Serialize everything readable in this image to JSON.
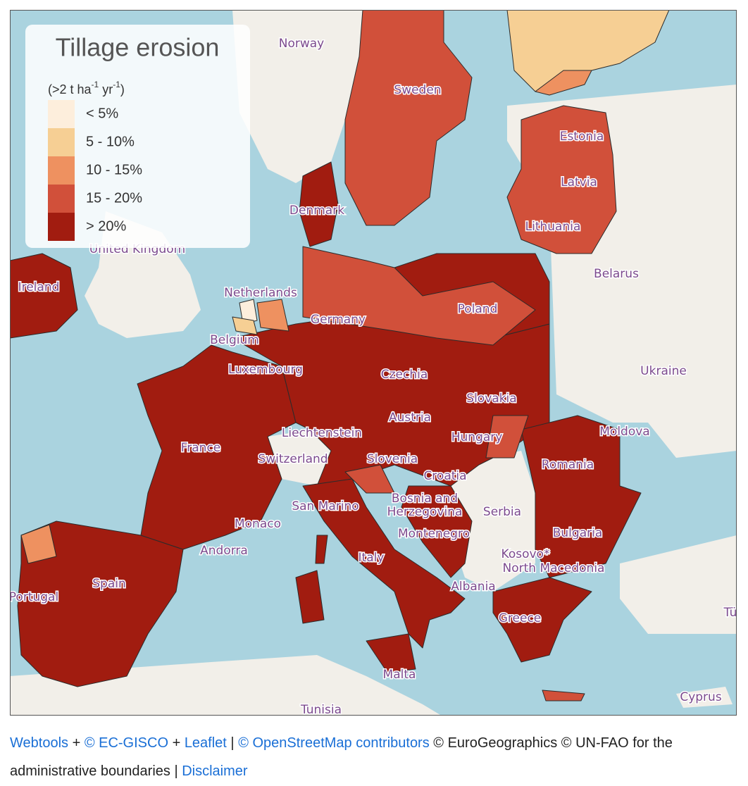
{
  "legend": {
    "title": "Tillage erosion",
    "unit": [
      "(>2 t ha",
      "-1",
      " yr",
      "-1",
      ")"
    ],
    "classes": [
      {
        "label": "< 5%",
        "color": "#fdeedc"
      },
      {
        "label": "5 - 10%",
        "color": "#f6cf94"
      },
      {
        "label": "10 - 15%",
        "color": "#ee9160"
      },
      {
        "label": "15 - 20%",
        "color": "#d1503a"
      },
      {
        "label": "> 20%",
        "color": "#a11c10"
      }
    ]
  },
  "map": {
    "labels": [
      "Norway",
      "Sweden",
      "Estonia",
      "Latvia",
      "Lithuania",
      "Denmark",
      "United Kingdom",
      "Ireland",
      "Netherlands",
      "Belarus",
      "Germany",
      "Poland",
      "Belgium",
      "Luxembourg",
      "Czechia",
      "Ukraine",
      "Slovakia",
      "Austria",
      "Moldova",
      "Liechtenstein",
      "Hungary",
      "France",
      "Switzerland",
      "Slovenia",
      "Romania",
      "Croatia",
      [
        "Bosnia and",
        "Herzegovina"
      ],
      "San Marino",
      "Serbia",
      "Monaco",
      "Montenegro",
      "Bulgaria",
      "Kosovo*",
      "North Macedonia",
      "Andorra",
      "Italy",
      "Albania",
      "Spain",
      "Portugal",
      "Greece",
      "Türkiye",
      "Malta",
      "Tunisia",
      "Cyprus"
    ]
  },
  "footer": {
    "parts": [
      {
        "text": "Webtools",
        "link": true
      },
      {
        "text": " + "
      },
      {
        "text": "© EC-GISCO",
        "link": true
      },
      {
        "text": " + "
      },
      {
        "text": "Leaflet",
        "link": true
      },
      {
        "text": " | "
      },
      {
        "text": "© OpenStreetMap contributors",
        "link": true
      },
      {
        "text": " © EuroGeographics © UN-FAO for the administrative boundaries | "
      },
      {
        "text": "Disclaimer",
        "link": true
      }
    ]
  }
}
